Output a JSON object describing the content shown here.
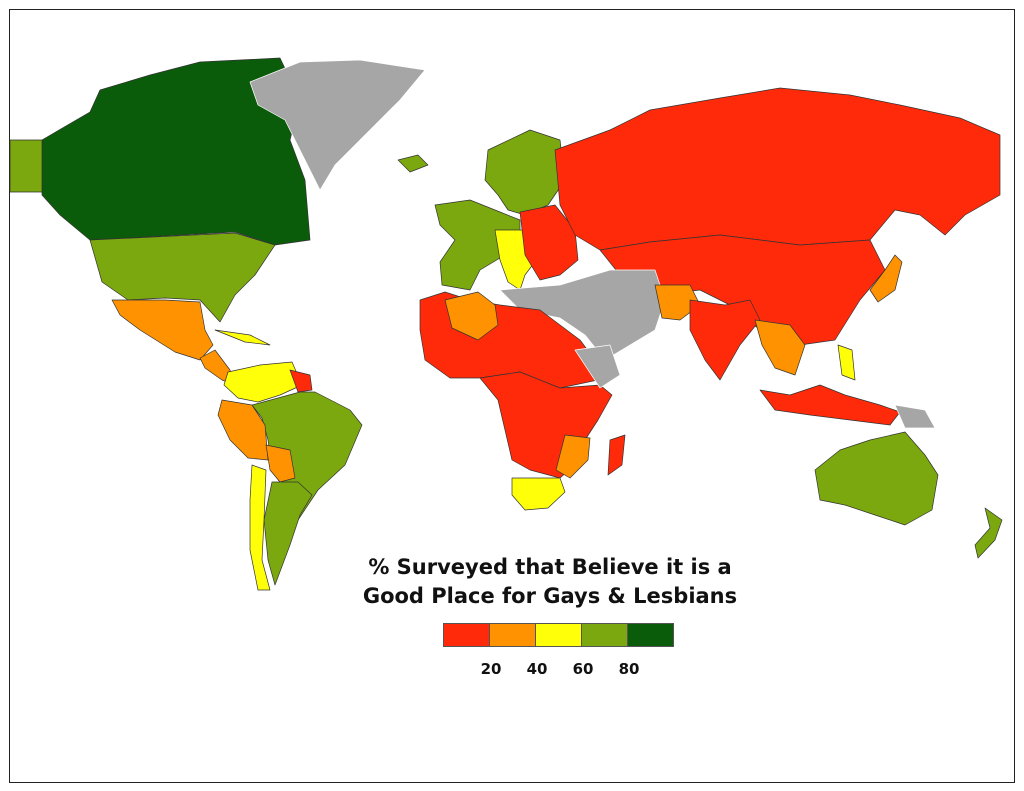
{
  "legend": {
    "title_line1": "% Surveyed that Believe it is a",
    "title_line2": "Good Place for Gays & Lesbians",
    "bins": [
      {
        "range": [
          0,
          20
        ],
        "color": "#ff2a0a"
      },
      {
        "range": [
          20,
          40
        ],
        "color": "#ff9200"
      },
      {
        "range": [
          40,
          60
        ],
        "color": "#ffff0a"
      },
      {
        "range": [
          60,
          80
        ],
        "color": "#7aa80e"
      },
      {
        "range": [
          80,
          100
        ],
        "color": "#0a5c0a"
      }
    ],
    "tick_labels": [
      "20",
      "40",
      "60",
      "80"
    ],
    "no_data_color": "#a6a6a6"
  },
  "regions": [
    {
      "id": "canada",
      "bin": 4
    },
    {
      "id": "alaska",
      "bin": 3
    },
    {
      "id": "greenland",
      "bin": null
    },
    {
      "id": "usa",
      "bin": 3
    },
    {
      "id": "mexico",
      "bin": 1
    },
    {
      "id": "central-america",
      "bin": 1
    },
    {
      "id": "caribbean",
      "bin": 2
    },
    {
      "id": "colombia-venezuela",
      "bin": 2
    },
    {
      "id": "guianas",
      "bin": 0
    },
    {
      "id": "brazil",
      "bin": 3
    },
    {
      "id": "peru-ecuador",
      "bin": 1
    },
    {
      "id": "bolivia",
      "bin": 1
    },
    {
      "id": "argentina-uruguay",
      "bin": 3
    },
    {
      "id": "chile",
      "bin": 2
    },
    {
      "id": "iceland",
      "bin": 3
    },
    {
      "id": "scandinavia",
      "bin": 3
    },
    {
      "id": "western-europe",
      "bin": 3
    },
    {
      "id": "italy-central-europe",
      "bin": 2
    },
    {
      "id": "eastern-europe",
      "bin": 0
    },
    {
      "id": "russia",
      "bin": 0
    },
    {
      "id": "central-east-asia",
      "bin": 0
    },
    {
      "id": "middle-east",
      "bin": null
    },
    {
      "id": "pakistan",
      "bin": 1
    },
    {
      "id": "india",
      "bin": 0
    },
    {
      "id": "north-africa",
      "bin": 0
    },
    {
      "id": "algeria",
      "bin": 1
    },
    {
      "id": "sub-saharan-africa",
      "bin": 0
    },
    {
      "id": "horn-of-africa",
      "bin": null
    },
    {
      "id": "southern-africa",
      "bin": 1
    },
    {
      "id": "south-africa",
      "bin": 2
    },
    {
      "id": "madagascar",
      "bin": 0
    },
    {
      "id": "japan",
      "bin": 1
    },
    {
      "id": "southeast-asia",
      "bin": 1
    },
    {
      "id": "philippines",
      "bin": 2
    },
    {
      "id": "indonesia-malaysia",
      "bin": 0
    },
    {
      "id": "papua",
      "bin": null
    },
    {
      "id": "australia",
      "bin": 3
    },
    {
      "id": "new-zealand",
      "bin": 3
    }
  ]
}
